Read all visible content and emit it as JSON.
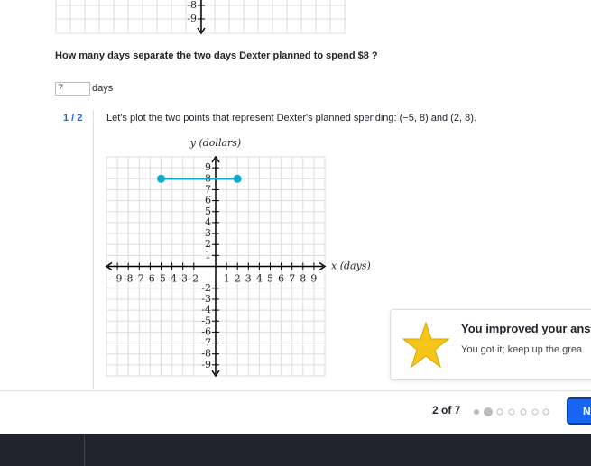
{
  "question": "How many days separate the two days Dexter planned to spend $8 ?",
  "answer": {
    "value": "7",
    "unit": "days"
  },
  "hint": {
    "step": "1 / 2",
    "text": "Let's plot the two points that represent Dexter's planned spending: (−5, 8) and (2, 8)."
  },
  "top_graph": {
    "yticks": [
      -8,
      -9
    ]
  },
  "graph": {
    "x_label": "x (days)",
    "y_label": "y (dollars)",
    "xlim": [
      -10,
      10
    ],
    "ylim": [
      -10,
      10
    ],
    "xticks": [
      -9,
      -8,
      -7,
      -6,
      -5,
      -4,
      -3,
      -2,
      1,
      2,
      3,
      4,
      5,
      6,
      7,
      8,
      9
    ],
    "yticks": [
      -9,
      -8,
      -7,
      -6,
      -5,
      -4,
      -3,
      -2,
      1,
      2,
      3,
      4,
      5,
      6,
      7,
      8,
      9
    ],
    "points": [
      {
        "x": -5,
        "y": 8
      },
      {
        "x": 2,
        "y": 8
      }
    ],
    "color": "#11accd"
  },
  "toast": {
    "title": "You improved your answ",
    "body": "You got it; keep up the grea"
  },
  "footer": {
    "progress": "2 of 7",
    "button": "N"
  }
}
